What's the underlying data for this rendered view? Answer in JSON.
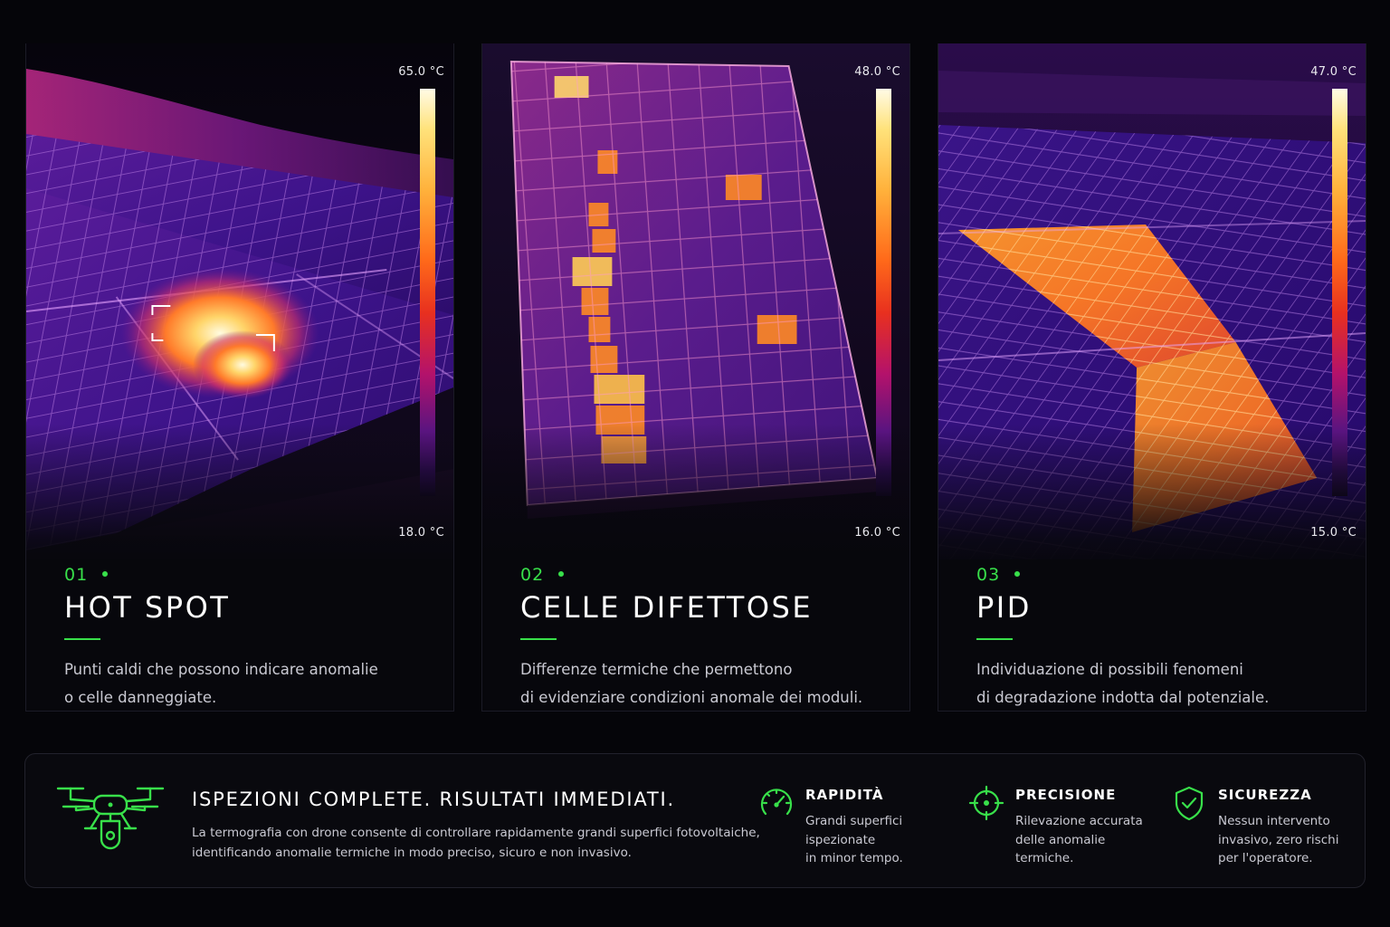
{
  "cards": [
    {
      "number": "01",
      "title": "HOT SPOT",
      "desc_lines": [
        "Punti caldi che possono indicare anomalie",
        "o celle danneggiate."
      ],
      "scale_max": "65.0 °C",
      "scale_min": "18.0 °C"
    },
    {
      "number": "02",
      "title": "CELLE DIFETTOSE",
      "desc_lines": [
        "Differenze termiche che permettono",
        "di evidenziare condizioni anomale dei moduli."
      ],
      "scale_max": "48.0 °C",
      "scale_min": "16.0 °C"
    },
    {
      "number": "03",
      "title": "PID",
      "desc_lines": [
        "Individuazione di possibili fenomeni",
        "di degradazione indotta dal potenziale."
      ],
      "scale_max": "47.0 °C",
      "scale_min": "15.0 °C"
    }
  ],
  "banner": {
    "headline": "ISPEZIONI COMPLETE. RISULTATI IMMEDIATI.",
    "body_lines": [
      "La termografia con drone consente di controllare rapidamente grandi superfici fotovoltaiche,",
      "identificando anomalie termiche in modo preciso, sicuro e non invasivo."
    ],
    "features": [
      {
        "icon": "speedometer-icon",
        "title": "RAPIDITÀ",
        "lines": [
          "Grandi superfici",
          "ispezionate",
          "in minor tempo."
        ]
      },
      {
        "icon": "crosshair-icon",
        "title": "PRECISIONE",
        "lines": [
          "Rilevazione accurata",
          "delle anomalie",
          "termiche."
        ]
      },
      {
        "icon": "shield-check-icon",
        "title": "SICUREZZA",
        "lines": [
          "Nessun intervento",
          "invasivo, zero rischi",
          "per l'operatore."
        ]
      }
    ]
  },
  "colors": {
    "accent": "#38e04a",
    "background": "#050509",
    "thermal_hot": "#ffe27a",
    "thermal_cold": "#3a1470"
  }
}
